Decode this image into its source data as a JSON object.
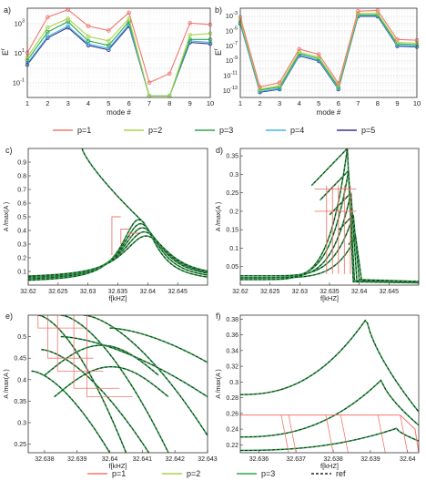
{
  "colors": {
    "p1": "#f2776f",
    "p2": "#a7d64c",
    "p3": "#2fa84f",
    "p4": "#42b4e6",
    "p5": "#3b3590",
    "ref": "#222222"
  },
  "legend_top": [
    {
      "label": "p=1",
      "key": "p1"
    },
    {
      "label": "p=2",
      "key": "p2"
    },
    {
      "label": "p=3",
      "key": "p3"
    },
    {
      "label": "p=4",
      "key": "p4"
    },
    {
      "label": "p=5",
      "key": "p5"
    }
  ],
  "legend_bottom": [
    {
      "label": "p=1",
      "key": "p1"
    },
    {
      "label": "p=2",
      "key": "p2"
    },
    {
      "label": "p=3",
      "key": "p3"
    },
    {
      "label": "ref",
      "key": "ref"
    }
  ],
  "chart_data": [
    {
      "panel": "a)",
      "type": "line",
      "ylabel_main": "E",
      "ylabel_sup": "r",
      "xlabel": "mode #",
      "ylim_log": [
        -2,
        4
      ],
      "y_scale": "log",
      "ytick_exps": [
        "-1",
        "1",
        "3"
      ],
      "xlim": [
        1,
        10
      ],
      "x": [
        1,
        2,
        3,
        4,
        5,
        6,
        7,
        8,
        9,
        10
      ],
      "grid": true,
      "series": [
        {
          "name": "p=1",
          "key": "p1",
          "log_values": [
            1.0,
            3.4,
            3.9,
            2.8,
            2.5,
            3.7,
            -1.0,
            -0.4,
            3.0,
            2.9
          ]
        },
        {
          "name": "p=2",
          "key": "p2",
          "log_values": [
            0.7,
            2.7,
            3.3,
            2.1,
            1.8,
            3.3,
            -1.9,
            -1.9,
            2.2,
            2.3
          ]
        },
        {
          "name": "p=3",
          "key": "p3",
          "log_values": [
            0.5,
            2.4,
            3.1,
            1.8,
            1.5,
            3.1,
            -1.9,
            -1.9,
            1.9,
            1.9
          ]
        },
        {
          "name": "p=4",
          "key": "p4",
          "log_values": [
            0.3,
            2.1,
            2.8,
            1.6,
            1.3,
            2.9,
            -1.9,
            -1.9,
            1.8,
            1.7
          ]
        },
        {
          "name": "p=5",
          "key": "p5",
          "log_values": [
            0.2,
            2.0,
            2.7,
            1.5,
            1.2,
            2.8,
            -1.9,
            -1.9,
            1.7,
            1.6
          ]
        }
      ]
    },
    {
      "panel": "b)",
      "type": "line",
      "ylabel_main": "E",
      "ylabel_sup": "r",
      "xlabel": "mode #",
      "ylim_log": [
        -14,
        -2
      ],
      "y_scale": "log",
      "ytick_exps": [
        "-13",
        "-11",
        "-9",
        "-7",
        "-5",
        "-3"
      ],
      "xlim": [
        1,
        10
      ],
      "x": [
        1,
        2,
        3,
        4,
        5,
        6,
        7,
        8,
        9,
        10
      ],
      "grid": true,
      "series": [
        {
          "name": "p=1",
          "key": "p1",
          "log_values": [
            -3.2,
            -12.6,
            -12.0,
            -7.5,
            -8.2,
            -12.1,
            -2.4,
            -2.3,
            -6.2,
            -6.3
          ]
        },
        {
          "name": "p=2",
          "key": "p2",
          "log_values": [
            -3.6,
            -12.9,
            -12.4,
            -7.9,
            -8.6,
            -12.4,
            -2.7,
            -2.7,
            -6.6,
            -6.7
          ]
        },
        {
          "name": "p=3",
          "key": "p3",
          "log_values": [
            -3.8,
            -13.0,
            -12.6,
            -8.1,
            -8.8,
            -12.6,
            -2.9,
            -2.9,
            -6.8,
            -6.9
          ]
        },
        {
          "name": "p=4",
          "key": "p4",
          "log_values": [
            -4.0,
            -13.2,
            -12.8,
            -8.3,
            -9.0,
            -12.8,
            -3.0,
            -3.0,
            -7.0,
            -7.1
          ]
        },
        {
          "name": "p=5",
          "key": "p5",
          "log_values": [
            -4.1,
            -13.3,
            -12.9,
            -8.4,
            -9.1,
            -12.9,
            -3.1,
            -3.1,
            -7.1,
            -7.2
          ]
        }
      ]
    },
    {
      "panel": "c)",
      "type": "line",
      "xlabel": "f[kHZ]",
      "ylabel": "A /max(A )",
      "ylabel_sub": "r",
      "xlim": [
        32.62,
        32.65
      ],
      "ylim": [
        0,
        1
      ],
      "xticks": [
        "32.62",
        "32.625",
        "32.63",
        "32.635",
        "32.64",
        "32.645"
      ],
      "yticks": [
        "0.1",
        "0.2",
        "0.3",
        "0.4",
        "0.5",
        "0.6",
        "0.7",
        "0.8",
        "0.9"
      ],
      "curves": [
        {
          "peak_x": 32.6385,
          "peak_y": 0.48,
          "base": 0.02,
          "width": 0.0035
        },
        {
          "peak_x": 32.6388,
          "peak_y": 0.45,
          "base": 0.03,
          "width": 0.0038
        },
        {
          "peak_x": 32.6391,
          "peak_y": 0.42,
          "base": 0.04,
          "width": 0.0041
        },
        {
          "peak_x": 32.6394,
          "peak_y": 0.39,
          "base": 0.045,
          "width": 0.0044
        },
        {
          "peak_x": 32.6397,
          "peak_y": 0.36,
          "base": 0.05,
          "width": 0.0047
        }
      ]
    },
    {
      "panel": "d)",
      "type": "line",
      "xlabel": "f[kHZ]",
      "ylabel": "A /max(A )",
      "ylabel_sub": "r",
      "xlim": [
        32.62,
        32.65
      ],
      "ylim": [
        0,
        0.37
      ],
      "xticks": [
        "32.62",
        "32.625",
        "32.63",
        "32.635",
        "32.64",
        "32.645"
      ],
      "yticks": [
        "0.05",
        "0.1",
        "0.15",
        "0.2",
        "0.25",
        "0.3",
        "0.35"
      ],
      "curves": [
        {
          "peak_x": 32.638,
          "peak_y": 0.37,
          "base": 0.015
        },
        {
          "peak_x": 32.6382,
          "peak_y": 0.31,
          "base": 0.02
        },
        {
          "peak_x": 32.6386,
          "peak_y": 0.25,
          "base": 0.02
        },
        {
          "peak_x": 32.639,
          "peak_y": 0.19,
          "base": 0.025
        },
        {
          "peak_x": 32.6394,
          "peak_y": 0.13,
          "base": 0.02
        }
      ]
    },
    {
      "panel": "e)",
      "type": "line",
      "xlabel": "f[kHZ]",
      "ylabel": "A /max(A )",
      "ylabel_sub": "r",
      "xlim": [
        32.6375,
        32.643
      ],
      "ylim": [
        0.23,
        0.55
      ],
      "xticks": [
        "32.638",
        "32.639",
        "32.64",
        "32.641",
        "32.642",
        "32.643"
      ],
      "yticks": [
        "0.25",
        "0.3",
        "0.35",
        "0.4",
        "0.45",
        "0.5"
      ]
    },
    {
      "panel": "f)",
      "type": "line",
      "xlabel": "f[kHZ]",
      "ylabel": "A /max(A )",
      "ylabel_sub": "r",
      "xlim": [
        32.6355,
        32.6403
      ],
      "ylim": [
        0.21,
        0.385
      ],
      "xticks": [
        "32.636",
        "32.637",
        "32.638",
        "32.639",
        "32.64"
      ],
      "yticks": [
        "0.22",
        "0.24",
        "0.26",
        "0.28",
        "0.3",
        "0.32",
        "0.34",
        "0.36",
        "0.38"
      ],
      "curves": [
        {
          "peak_x": 32.6389,
          "peak_y": 0.381,
          "left_y": 0.284,
          "right_y": 0.262
        },
        {
          "peak_x": 32.6393,
          "peak_y": 0.303,
          "left_y": 0.23,
          "right_y": 0.245
        },
        {
          "peak_x": 32.6397,
          "peak_y": 0.241,
          "left_y": 0.213,
          "right_y": 0.225
        }
      ]
    }
  ]
}
